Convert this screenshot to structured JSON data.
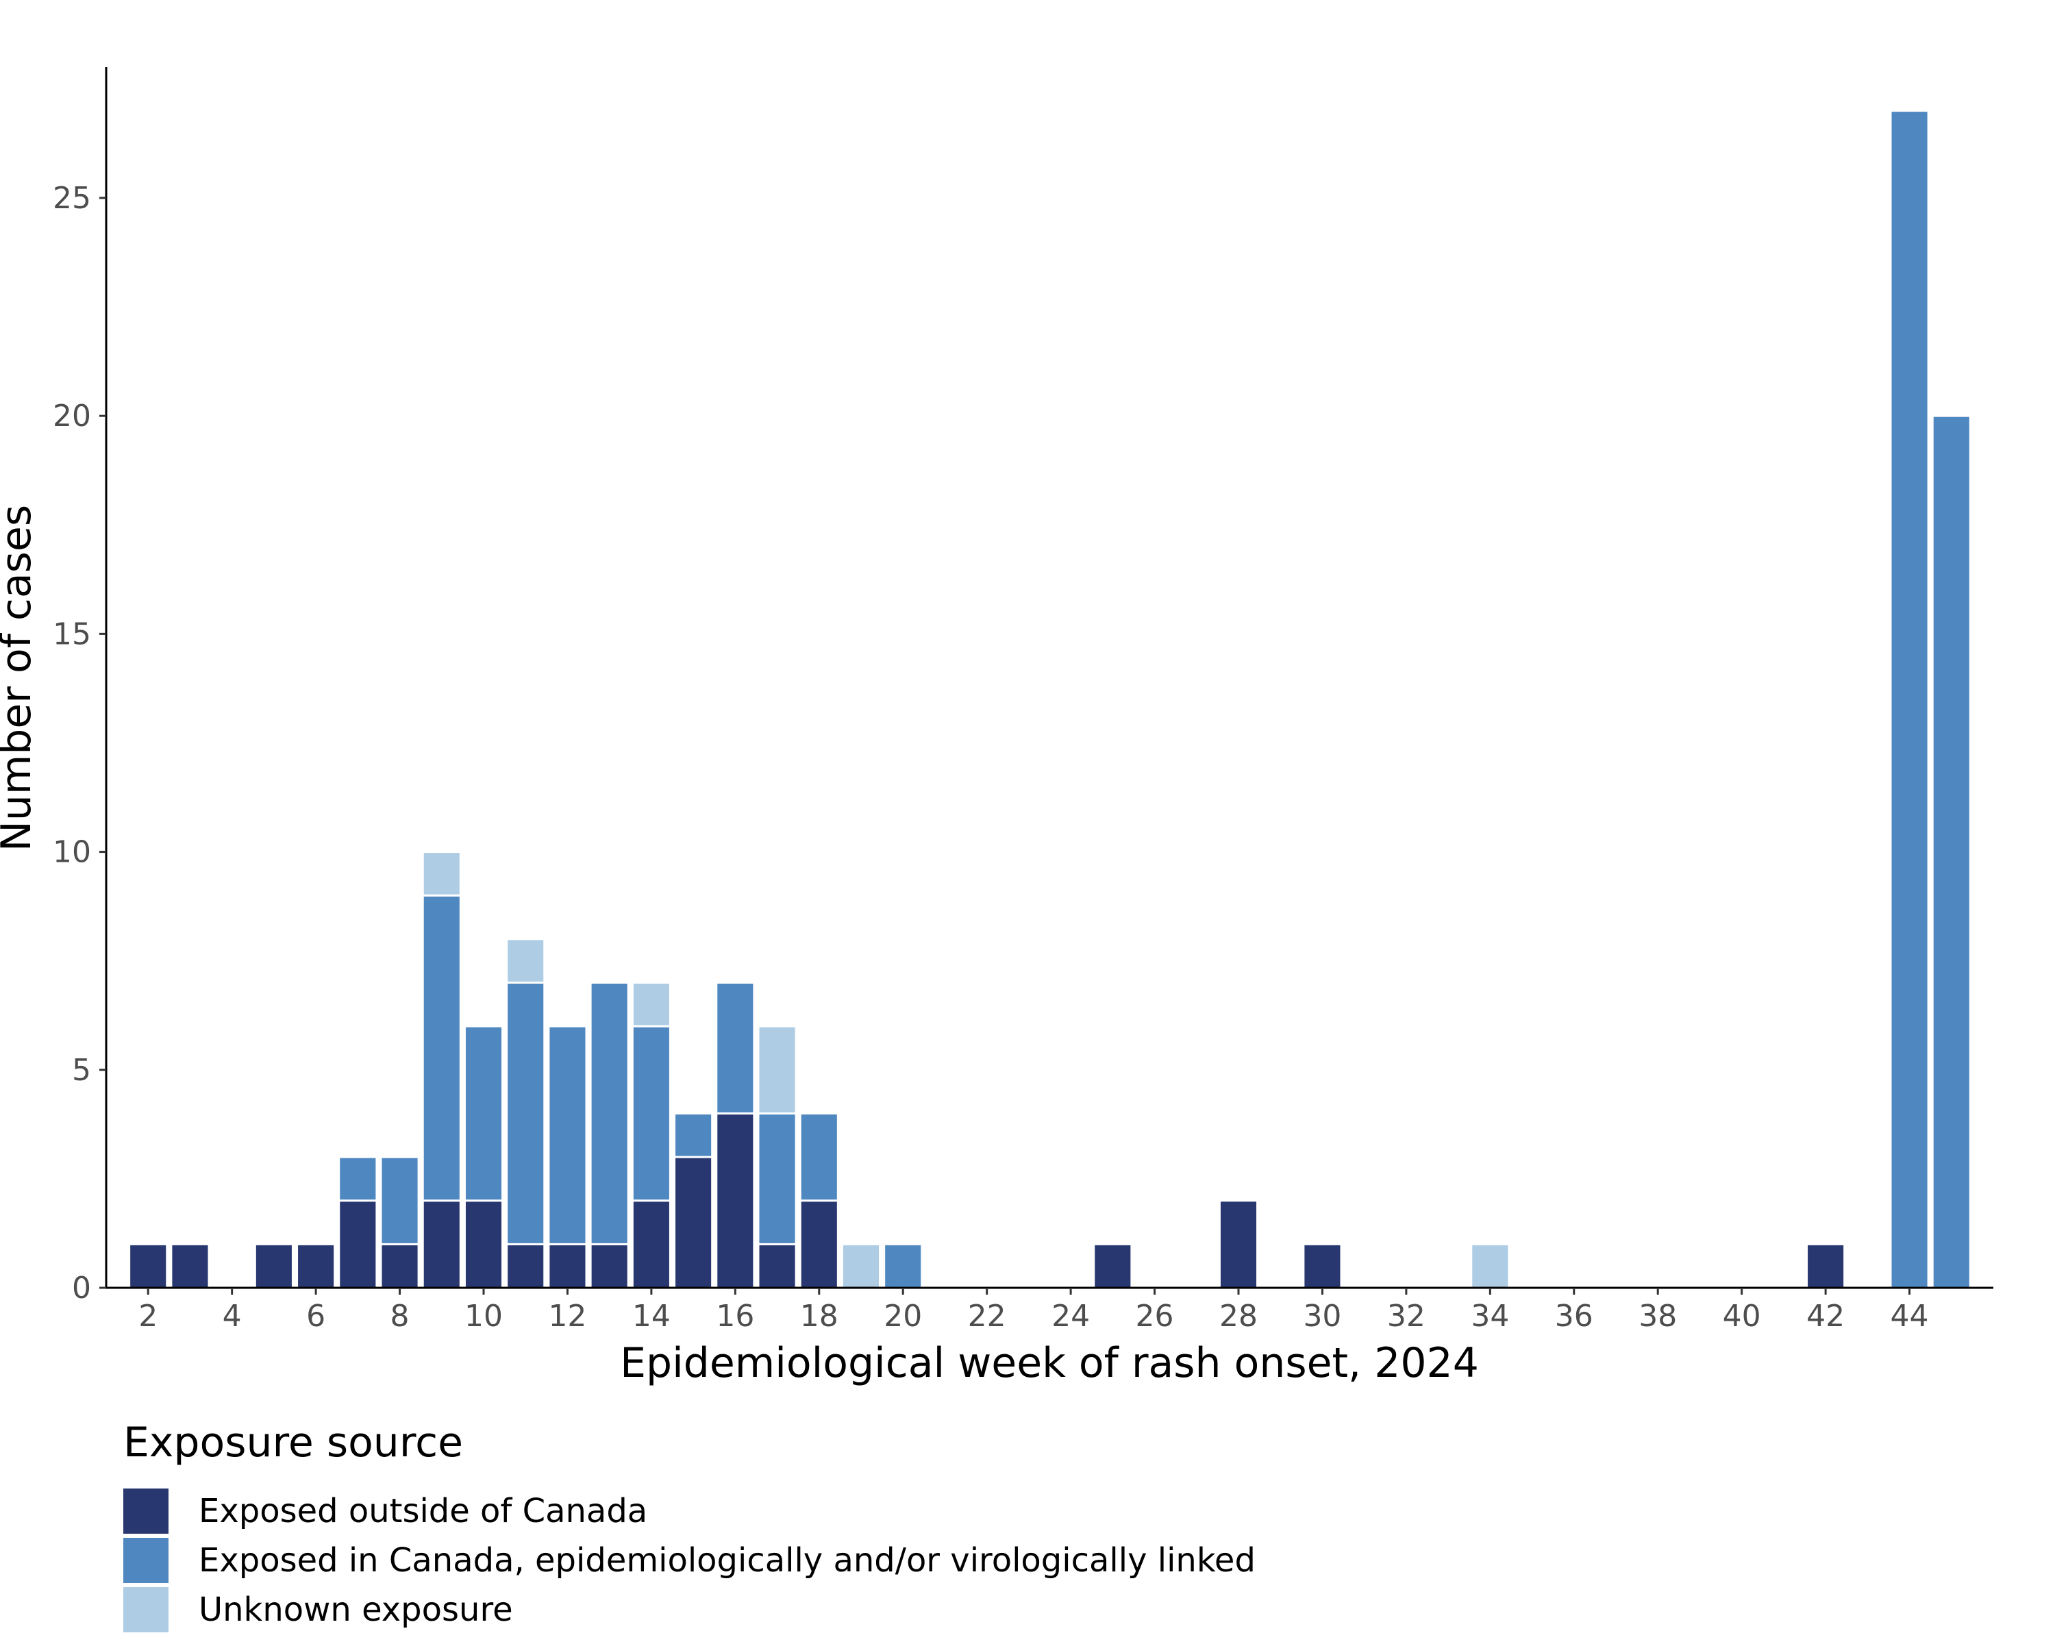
{
  "chart_data": {
    "type": "bar",
    "stacked": true,
    "xlabel": "Epidemiological week of rash onset, 2024",
    "ylabel": "Number of cases",
    "ylim": [
      0,
      28
    ],
    "y_ticks": [
      0,
      5,
      10,
      15,
      20,
      25
    ],
    "x_range": [
      1,
      46
    ],
    "x_ticks": [
      2,
      4,
      6,
      8,
      10,
      12,
      14,
      16,
      18,
      20,
      22,
      24,
      26,
      28,
      30,
      32,
      34,
      36,
      38,
      40,
      42,
      44
    ],
    "grid": false,
    "legend": {
      "title": "Exposure source",
      "placement": "bottom-left"
    },
    "x": [
      2,
      3,
      5,
      6,
      7,
      8,
      9,
      10,
      11,
      12,
      13,
      14,
      15,
      16,
      17,
      18,
      19,
      20,
      25,
      28,
      30,
      34,
      42,
      44,
      45
    ],
    "series": [
      {
        "name": "Exposed outside of Canada",
        "color": "#283770",
        "values": [
          1,
          1,
          1,
          1,
          2,
          1,
          2,
          2,
          1,
          1,
          1,
          2,
          3,
          4,
          1,
          2,
          0,
          0,
          1,
          2,
          1,
          0,
          1,
          0,
          0
        ]
      },
      {
        "name": "Exposed in Canada, epidemiologically and/or virologically linked",
        "color": "#4f87c1",
        "values": [
          0,
          0,
          0,
          0,
          1,
          2,
          7,
          4,
          6,
          5,
          6,
          4,
          1,
          3,
          3,
          2,
          0,
          1,
          0,
          0,
          0,
          0,
          0,
          27,
          20
        ]
      },
      {
        "name": "Unknown exposure",
        "color": "#aecde5",
        "values": [
          0,
          0,
          0,
          0,
          0,
          0,
          1,
          0,
          1,
          0,
          0,
          1,
          0,
          0,
          2,
          0,
          1,
          0,
          0,
          0,
          0,
          1,
          0,
          0,
          0
        ]
      }
    ]
  }
}
